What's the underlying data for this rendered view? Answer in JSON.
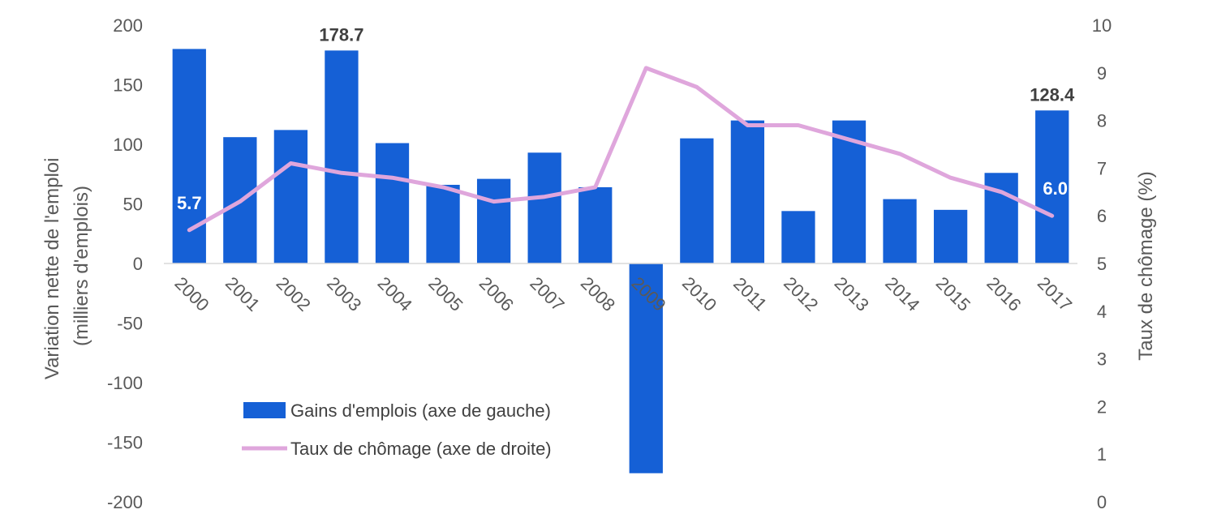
{
  "chart_data": {
    "type": "bar",
    "categories": [
      "2000",
      "2001",
      "2002",
      "2003",
      "2004",
      "2005",
      "2006",
      "2007",
      "2008",
      "2009",
      "2010",
      "2011",
      "2012",
      "2013",
      "2014",
      "2015",
      "2016",
      "2017"
    ],
    "series": [
      {
        "name": "Gains d'emplois (axe de gauche)",
        "type": "bar",
        "axis": "left",
        "color": "#1560d6",
        "values": [
          180,
          106,
          112,
          178.7,
          101,
          66,
          71,
          93,
          64,
          -176,
          105,
          120,
          44,
          120,
          54,
          45,
          76,
          128.4
        ]
      },
      {
        "name": "Taux de chômage (axe de droite)",
        "type": "line",
        "axis": "right",
        "color": "#dfa6dc",
        "values": [
          5.7,
          6.3,
          7.1,
          6.9,
          6.8,
          6.6,
          6.3,
          6.4,
          6.6,
          9.1,
          8.7,
          7.9,
          7.9,
          7.6,
          7.3,
          6.8,
          6.5,
          6.0
        ]
      }
    ],
    "left_axis": {
      "label": "Variation nette de l'emploi (milliers d'emplois)",
      "label_lines": [
        "Variation nette de l'emploi",
        "(milliers d'emplois)"
      ],
      "ylim": [
        -200,
        200
      ],
      "ticks": [
        "200",
        "150",
        "100",
        "50",
        "0",
        "-50",
        "-100",
        "-150",
        "-200"
      ],
      "tick_values": [
        200,
        150,
        100,
        50,
        0,
        -50,
        -100,
        -150,
        -200
      ]
    },
    "right_axis": {
      "label": "Taux de chômage (%)",
      "ylim": [
        0,
        10
      ],
      "ticks": [
        "10",
        "9",
        "8",
        "7",
        "6",
        "5",
        "4",
        "3",
        "2",
        "1",
        "0"
      ],
      "tick_values": [
        10,
        9,
        8,
        7,
        6,
        5,
        4,
        3,
        2,
        1,
        0
      ]
    },
    "data_labels": [
      {
        "series": 0,
        "index": 3,
        "text": "178.7",
        "color": "#404040"
      },
      {
        "series": 0,
        "index": 17,
        "text": "128.4",
        "color": "#404040"
      },
      {
        "series": 1,
        "index": 0,
        "text": "5.7",
        "color": "#ffffff"
      },
      {
        "series": 1,
        "index": 17,
        "text": "6.0",
        "color": "#ffffff"
      }
    ],
    "legend": {
      "placement": "bottom-left-inside"
    },
    "grid": false
  }
}
